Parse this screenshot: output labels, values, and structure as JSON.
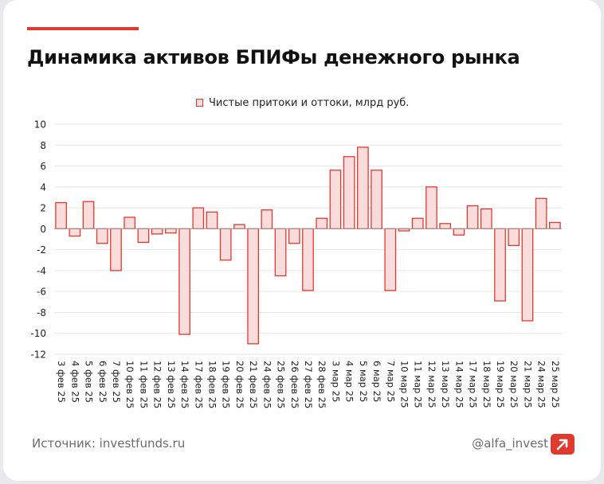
{
  "header": {
    "title": "Динамика активов БПИФы денежного рынка"
  },
  "footer": {
    "source": "Источник: investfunds.ru",
    "handle": "@alfa_invest",
    "brand_icon": "alfa-logo-icon"
  },
  "colors": {
    "accent": "#e03a2f",
    "bar_fill": "#fbdcdc",
    "bar_stroke": "#e03a2f",
    "grid": "#e6e6e6"
  },
  "chart_data": {
    "type": "bar",
    "title": "",
    "legend": [
      "Чистые притоки и оттоки, млрд руб."
    ],
    "xlabel": "",
    "ylabel": "",
    "ylim": [
      -12,
      10
    ],
    "yticks": [
      10,
      8,
      6,
      4,
      2,
      0,
      -2,
      -4,
      -6,
      -8,
      -10,
      -12
    ],
    "grid": true,
    "categories": [
      "3 фев 25",
      "4 фев 25",
      "5 фев 25",
      "6 фев 25",
      "7 фев 25",
      "10 фев 25",
      "11 фев 25",
      "12 фев 25",
      "13 фев 25",
      "14 фев 25",
      "17 фев 25",
      "18 фев 25",
      "19 фев 25",
      "20 фев 25",
      "21 фев 25",
      "24 фев 25",
      "25 фев 25",
      "26 фев 25",
      "27 фев 25",
      "28 фев 25",
      "3 мар 25",
      "4 мар 25",
      "5 мар 25",
      "6 мар 25",
      "7 мар 25",
      "10 мар 25",
      "11 мар 25",
      "12 мар 25",
      "13 мар 25",
      "14 мар 25",
      "17 мар 25",
      "18 мар 25",
      "19 мар 25",
      "20 мар 25",
      "21 мар 25",
      "24 мар 25",
      "25 мар 25"
    ],
    "series": [
      {
        "name": "Чистые притоки и оттоки, млрд руб.",
        "values": [
          2.5,
          -0.7,
          2.6,
          -1.4,
          -4.0,
          1.1,
          -1.3,
          -0.5,
          -0.4,
          -10.1,
          2.0,
          1.6,
          -3.0,
          0.4,
          -11.0,
          1.8,
          -4.5,
          -1.4,
          -5.9,
          1.0,
          5.6,
          6.9,
          7.8,
          5.6,
          -5.9,
          -0.2,
          1.0,
          4.0,
          0.5,
          -0.6,
          2.2,
          1.9,
          -6.9,
          -1.6,
          -8.8,
          2.9,
          0.6
        ]
      }
    ]
  }
}
